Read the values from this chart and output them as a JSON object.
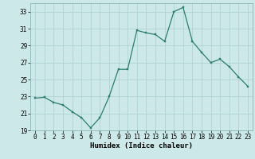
{
  "x": [
    0,
    1,
    2,
    3,
    4,
    5,
    6,
    7,
    8,
    9,
    10,
    11,
    12,
    13,
    14,
    15,
    16,
    17,
    18,
    19,
    20,
    21,
    22,
    23
  ],
  "y": [
    22.8,
    22.9,
    22.3,
    22.0,
    21.2,
    20.5,
    19.3,
    20.5,
    23.0,
    26.2,
    26.2,
    30.8,
    30.5,
    30.3,
    29.5,
    33.0,
    33.5,
    29.5,
    28.2,
    27.0,
    27.4,
    26.5,
    25.3,
    24.2
  ],
  "line_color": "#2d7d6e",
  "marker_color": "#2d7d6e",
  "bg_color": "#cce8e8",
  "grid_color": "#aacfcf",
  "xlabel": "Humidex (Indice chaleur)",
  "ylim": [
    19,
    34
  ],
  "yticks": [
    19,
    21,
    23,
    25,
    27,
    29,
    31,
    33
  ],
  "xticks": [
    0,
    1,
    2,
    3,
    4,
    5,
    6,
    7,
    8,
    9,
    10,
    11,
    12,
    13,
    14,
    15,
    16,
    17,
    18,
    19,
    20,
    21,
    22,
    23
  ],
  "tick_fontsize": 5.5,
  "label_fontsize": 6.5
}
